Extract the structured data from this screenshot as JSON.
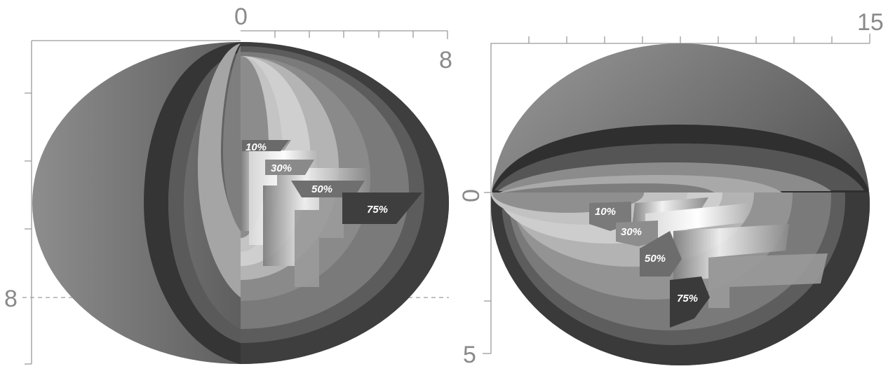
{
  "left_figure": {
    "top_axis_start": "0",
    "top_axis_end": "8",
    "left_axis_mark": "8",
    "shell_labels": [
      "10%",
      "30%",
      "50%",
      "75%"
    ]
  },
  "right_figure": {
    "top_axis_end": "15",
    "left_axis_zero": "0",
    "left_axis_end": "5",
    "shell_labels": [
      "10%",
      "30%",
      "50%",
      "75%"
    ]
  },
  "colors": {
    "axis": "#9a9a9a",
    "outer_shell": "#6e6e6e",
    "band_dark": "#3f3f3f",
    "shell_mid": "#7a7a7a",
    "shell_light": "#b4b4b4",
    "shell_lighter": "#cfcfcf",
    "core": "#8c8c8c"
  }
}
